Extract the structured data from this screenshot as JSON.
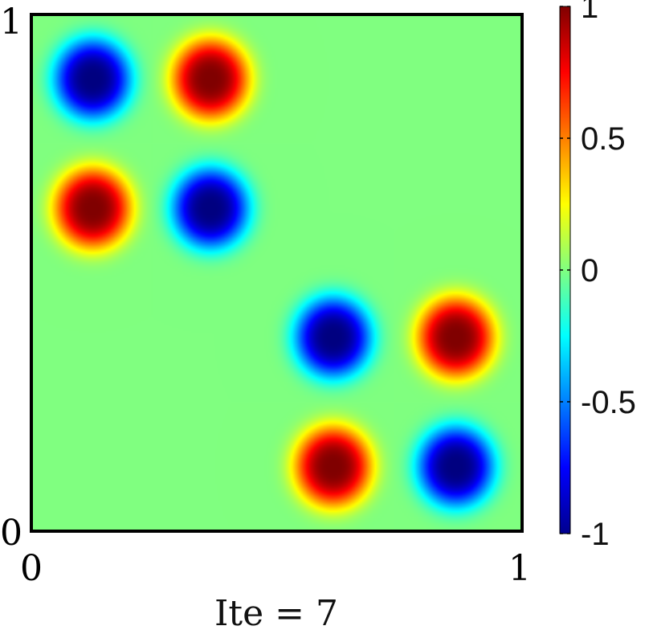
{
  "chart_data": {
    "type": "heatmap",
    "title": "",
    "xlabel": "Ite = 7",
    "ylabel": "",
    "xlim": [
      0,
      1
    ],
    "ylim": [
      0,
      1
    ],
    "x_ticks": [
      "0",
      "1"
    ],
    "y_ticks": [
      "0",
      "1"
    ],
    "colorbar": {
      "colormap": "jet",
      "range": [
        -1,
        1
      ],
      "ticks": [
        {
          "value": 1,
          "label": "1"
        },
        {
          "value": 0.5,
          "label": "0.5"
        },
        {
          "value": 0,
          "label": "0"
        },
        {
          "value": -0.5,
          "label": "-0.5"
        },
        {
          "value": -1,
          "label": "-1"
        }
      ]
    },
    "field": {
      "description_of_blobs": [
        {
          "x": 0.125,
          "y": 0.875,
          "value": -1.0
        },
        {
          "x": 0.365,
          "y": 0.875,
          "value": 1.0
        },
        {
          "x": 0.125,
          "y": 0.625,
          "value": 1.0
        },
        {
          "x": 0.365,
          "y": 0.625,
          "value": -1.0
        },
        {
          "x": 0.615,
          "y": 0.375,
          "value": -1.0
        },
        {
          "x": 0.865,
          "y": 0.375,
          "value": 1.0
        },
        {
          "x": 0.615,
          "y": 0.125,
          "value": 1.0
        },
        {
          "x": 0.865,
          "y": 0.125,
          "value": -1.0
        }
      ],
      "background_value": 0.0
    },
    "grid": false,
    "legend": "colorbar-right"
  }
}
